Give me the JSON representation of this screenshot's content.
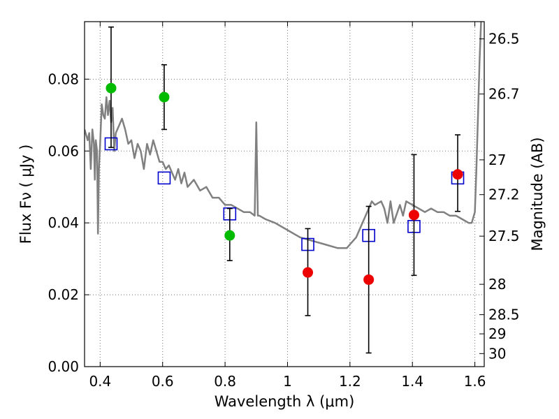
{
  "chart_data": {
    "type": "scatter",
    "xlabel": "Wavelength  λ (μm)",
    "ylabel": "Flux  Fν  ( μJy )",
    "y2label": "Magnitude (AB)",
    "xlim": [
      0.35,
      1.63
    ],
    "ylim": [
      0.0,
      0.096
    ],
    "grid": true,
    "x_ticks": [
      0.4,
      0.6,
      0.8,
      1.0,
      1.2,
      1.4,
      1.6
    ],
    "x_tick_labels": [
      "0.4",
      "0.6",
      "0.8",
      "1",
      "1.2",
      "1.4",
      "1.6"
    ],
    "y_ticks": [
      0.0,
      0.02,
      0.04,
      0.06,
      0.08
    ],
    "y_tick_labels": [
      "0.00",
      "0.02",
      "0.04",
      "0.06",
      "0.08"
    ],
    "mag_ticks": [
      "26.5",
      "26.7",
      "27",
      "27.2",
      "27.5",
      "28",
      "28.5",
      "29",
      "30"
    ],
    "colors": {
      "model": "#808080",
      "model_points": "#0000cc",
      "green_points": "#00bb00",
      "red_points": "#ee0000",
      "errorbars": "#000000"
    },
    "series": [
      {
        "kind": "line",
        "x": [
          0.35,
          0.36,
          0.365,
          0.37,
          0.375,
          0.38,
          0.383,
          0.386,
          0.39,
          0.393,
          0.396,
          0.4,
          0.405,
          0.41,
          0.415,
          0.42,
          0.425,
          0.43,
          0.435,
          0.44,
          0.445,
          0.45,
          0.46,
          0.47,
          0.48,
          0.49,
          0.5,
          0.51,
          0.52,
          0.53,
          0.54,
          0.55,
          0.56,
          0.57,
          0.58,
          0.59,
          0.6,
          0.61,
          0.62,
          0.63,
          0.64,
          0.65,
          0.66,
          0.67,
          0.68,
          0.7,
          0.72,
          0.74,
          0.76,
          0.78,
          0.8,
          0.82,
          0.84,
          0.86,
          0.88,
          0.895,
          0.9,
          0.905,
          0.91,
          0.93,
          0.96,
          1.0,
          1.04,
          1.08,
          1.12,
          1.16,
          1.19,
          1.2,
          1.22,
          1.24,
          1.26,
          1.27,
          1.28,
          1.3,
          1.31,
          1.32,
          1.33,
          1.34,
          1.36,
          1.37,
          1.38,
          1.4,
          1.42,
          1.44,
          1.46,
          1.48,
          1.5,
          1.52,
          1.54,
          1.56,
          1.58,
          1.59,
          1.6,
          1.605,
          1.61,
          1.615,
          1.62
        ],
        "y": [
          0.066,
          0.063,
          0.065,
          0.055,
          0.066,
          0.062,
          0.052,
          0.063,
          0.06,
          0.037,
          0.055,
          0.062,
          0.073,
          0.07,
          0.069,
          0.075,
          0.07,
          0.074,
          0.068,
          0.072,
          0.06,
          0.065,
          0.067,
          0.069,
          0.066,
          0.062,
          0.063,
          0.058,
          0.062,
          0.06,
          0.055,
          0.062,
          0.059,
          0.063,
          0.06,
          0.057,
          0.057,
          0.055,
          0.056,
          0.054,
          0.052,
          0.055,
          0.051,
          0.054,
          0.05,
          0.052,
          0.049,
          0.05,
          0.047,
          0.047,
          0.045,
          0.045,
          0.044,
          0.043,
          0.043,
          0.042,
          0.068,
          0.042,
          0.042,
          0.041,
          0.04,
          0.038,
          0.036,
          0.035,
          0.034,
          0.033,
          0.033,
          0.034,
          0.036,
          0.04,
          0.044,
          0.046,
          0.045,
          0.046,
          0.044,
          0.04,
          0.046,
          0.04,
          0.045,
          0.042,
          0.046,
          0.045,
          0.044,
          0.043,
          0.044,
          0.043,
          0.043,
          0.042,
          0.042,
          0.041,
          0.04,
          0.04,
          0.043,
          0.055,
          0.07,
          0.085,
          0.096
        ]
      },
      {
        "kind": "open-square",
        "x": [
          0.435,
          0.605,
          0.815,
          1.065,
          1.26,
          1.405,
          1.545
        ],
        "y": [
          0.062,
          0.0525,
          0.0425,
          0.034,
          0.0365,
          0.039,
          0.0525
        ]
      },
      {
        "kind": "filled-circle",
        "x": [
          0.435,
          0.605,
          0.815
        ],
        "y": [
          0.0775,
          0.075,
          0.0365
        ],
        "err_low": [
          0.061,
          0.066,
          0.0295
        ],
        "err_high": [
          0.0945,
          0.084,
          0.044
        ]
      },
      {
        "kind": "filled-circle",
        "x": [
          1.065,
          1.26,
          1.405,
          1.545
        ],
        "y": [
          0.0262,
          0.0242,
          0.0422,
          0.0535
        ],
        "err_low": [
          0.0142,
          0.0038,
          0.0254,
          0.0432
        ],
        "err_high": [
          0.0384,
          0.0446,
          0.059,
          0.0645
        ]
      }
    ]
  }
}
